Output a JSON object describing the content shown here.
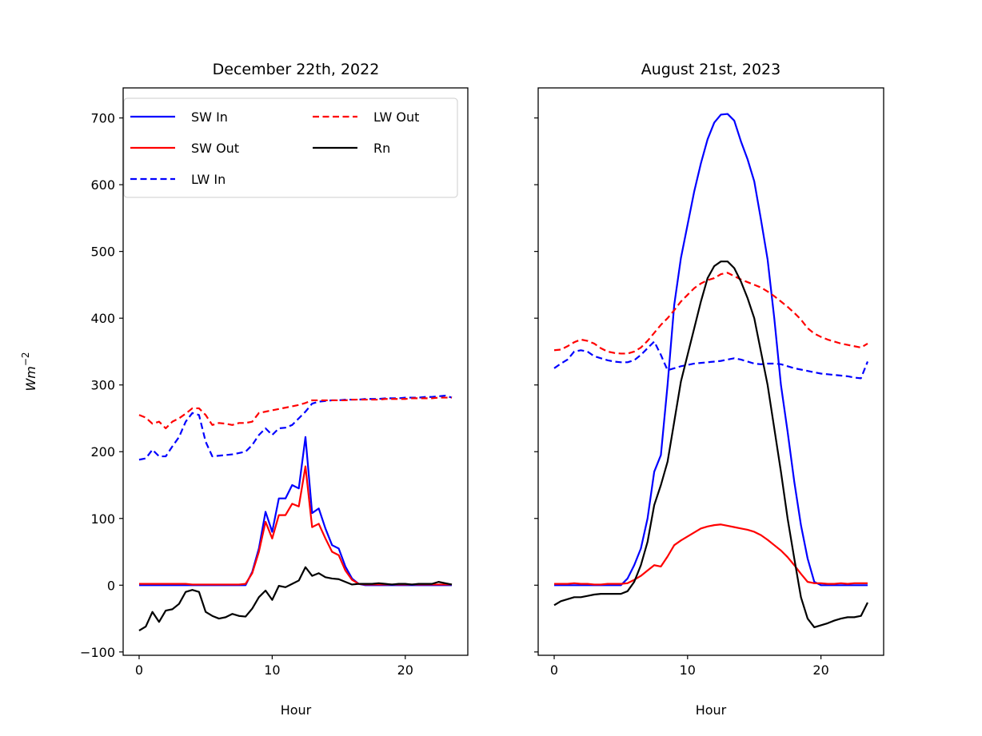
{
  "figure": {
    "ylabel_base": "Wm",
    "ylabel_exp": "−2"
  },
  "chart_data": [
    {
      "type": "line",
      "title": "December 22th, 2022",
      "xlabel": "Hour",
      "ylabel": "Wm^-2",
      "xlim": [
        -1.2,
        24.7
      ],
      "ylim": [
        -105,
        745
      ],
      "xticks": [
        0,
        10,
        20
      ],
      "xtick_labels": [
        "0",
        "10",
        "20"
      ],
      "yticks": [
        -100,
        0,
        100,
        200,
        300,
        400,
        500,
        600,
        700
      ],
      "ytick_labels": [
        "−100",
        "0",
        "100",
        "200",
        "300",
        "400",
        "500",
        "600",
        "700"
      ],
      "grid": false,
      "legend": {
        "placement": "top-left",
        "columns": 2
      },
      "x": [
        0,
        0.5,
        1,
        1.5,
        2,
        2.5,
        3,
        3.5,
        4,
        4.5,
        5,
        5.5,
        6,
        6.5,
        7,
        7.5,
        8,
        8.5,
        9,
        9.5,
        10,
        10.5,
        11,
        11.5,
        12,
        12.5,
        13,
        13.5,
        14,
        14.5,
        15,
        15.5,
        16,
        16.5,
        17,
        17.5,
        18,
        18.5,
        19,
        19.5,
        20,
        20.5,
        21,
        21.5,
        22,
        22.5,
        23,
        23.5
      ],
      "series": [
        {
          "name": "SW In",
          "color": "#0000ff",
          "style": "solid",
          "values": [
            0,
            0,
            0,
            0,
            0,
            0,
            0,
            0,
            0,
            0,
            0,
            0,
            0,
            0,
            0,
            0,
            0,
            20,
            55,
            110,
            80,
            130,
            130,
            150,
            145,
            222,
            108,
            115,
            85,
            60,
            55,
            28,
            10,
            2,
            0,
            0,
            0,
            0,
            0,
            0,
            0,
            0,
            0,
            0,
            0,
            0,
            0,
            0
          ]
        },
        {
          "name": "SW Out",
          "color": "#ff0000",
          "style": "solid",
          "values": [
            2,
            2,
            2,
            2,
            2,
            2,
            2,
            2,
            1,
            1,
            1,
            1,
            1,
            1,
            1,
            1,
            2,
            18,
            50,
            95,
            70,
            105,
            105,
            122,
            118,
            178,
            87,
            92,
            70,
            50,
            45,
            22,
            8,
            2,
            1,
            1,
            1,
            1,
            1,
            1,
            1,
            1,
            1,
            1,
            1,
            1,
            1,
            1
          ]
        },
        {
          "name": "LW In",
          "color": "#0000ff",
          "style": "dashed",
          "values": [
            188,
            190,
            203,
            193,
            193,
            208,
            222,
            245,
            258,
            255,
            215,
            193,
            194,
            195,
            196,
            198,
            200,
            210,
            225,
            235,
            225,
            235,
            236,
            240,
            250,
            260,
            272,
            275,
            276,
            277,
            277,
            278,
            278,
            278,
            279,
            279,
            279,
            280,
            280,
            280,
            281,
            281,
            281,
            282,
            282,
            283,
            284,
            281
          ]
        },
        {
          "name": "LW Out",
          "color": "#ff0000",
          "style": "dashed",
          "values": [
            255,
            251,
            242,
            245,
            235,
            245,
            250,
            257,
            265,
            265,
            255,
            240,
            243,
            242,
            240,
            243,
            243,
            245,
            258,
            260,
            262,
            264,
            266,
            268,
            270,
            273,
            277,
            277,
            277,
            277,
            277,
            277,
            278,
            278,
            278,
            278,
            278,
            279,
            279,
            279,
            279,
            280,
            280,
            280,
            280,
            281,
            281,
            281
          ]
        },
        {
          "name": "Rn",
          "color": "#000000",
          "style": "solid",
          "values": [
            -68,
            -62,
            -40,
            -55,
            -38,
            -36,
            -28,
            -10,
            -7,
            -10,
            -40,
            -46,
            -50,
            -48,
            -43,
            -46,
            -47,
            -35,
            -18,
            -8,
            -22,
            -1,
            -3,
            2,
            7,
            27,
            14,
            18,
            12,
            10,
            9,
            5,
            1,
            2,
            2,
            2,
            3,
            2,
            1,
            2,
            2,
            1,
            2,
            2,
            2,
            5,
            3,
            1
          ]
        }
      ]
    },
    {
      "type": "line",
      "title": "August 21st, 2023",
      "xlabel": "Hour",
      "ylabel": "",
      "xlim": [
        -1.2,
        24.7
      ],
      "ylim": [
        -105,
        745
      ],
      "xticks": [
        0,
        10,
        20
      ],
      "xtick_labels": [
        "0",
        "10",
        "20"
      ],
      "yticks": [
        -100,
        0,
        100,
        200,
        300,
        400,
        500,
        600,
        700
      ],
      "ytick_labels": [],
      "grid": false,
      "x": [
        0,
        0.5,
        1,
        1.5,
        2,
        2.5,
        3,
        3.5,
        4,
        4.5,
        5,
        5.5,
        6,
        6.5,
        7,
        7.5,
        8,
        8.5,
        9,
        9.5,
        10,
        10.5,
        11,
        11.5,
        12,
        12.5,
        13,
        13.5,
        14,
        14.5,
        15,
        15.5,
        16,
        16.5,
        17,
        17.5,
        18,
        18.5,
        19,
        19.5,
        20,
        20.5,
        21,
        21.5,
        22,
        22.5,
        23,
        23.5
      ],
      "series": [
        {
          "name": "SW In",
          "color": "#0000ff",
          "style": "solid",
          "values": [
            0,
            0,
            0,
            0,
            0,
            0,
            0,
            0,
            0,
            0,
            0,
            10,
            30,
            55,
            100,
            170,
            195,
            300,
            420,
            490,
            540,
            590,
            632,
            668,
            693,
            705,
            706,
            696,
            665,
            638,
            605,
            548,
            488,
            400,
            300,
            230,
            155,
            90,
            40,
            5,
            0,
            0,
            0,
            0,
            0,
            0,
            0,
            0
          ]
        },
        {
          "name": "SW Out",
          "color": "#ff0000",
          "style": "solid",
          "values": [
            2,
            2,
            2,
            3,
            2,
            2,
            1,
            1,
            2,
            2,
            2,
            3,
            8,
            14,
            22,
            30,
            28,
            43,
            60,
            67,
            73,
            79,
            85,
            88,
            90,
            91,
            89,
            87,
            85,
            83,
            80,
            75,
            68,
            60,
            52,
            42,
            30,
            17,
            5,
            3,
            3,
            2,
            2,
            3,
            2,
            3,
            3,
            3
          ]
        },
        {
          "name": "LW In",
          "color": "#0000ff",
          "style": "dashed",
          "values": [
            325,
            332,
            338,
            350,
            352,
            350,
            343,
            340,
            337,
            335,
            334,
            334,
            337,
            345,
            355,
            365,
            345,
            322,
            325,
            328,
            330,
            332,
            333,
            334,
            335,
            336,
            338,
            340,
            338,
            335,
            332,
            331,
            332,
            332,
            331,
            328,
            325,
            323,
            321,
            319,
            317,
            316,
            315,
            314,
            313,
            311,
            310,
            335
          ]
        },
        {
          "name": "LW Out",
          "color": "#ff0000",
          "style": "dashed",
          "values": [
            352,
            353,
            358,
            364,
            368,
            366,
            362,
            355,
            350,
            348,
            347,
            347,
            350,
            356,
            366,
            378,
            390,
            400,
            412,
            425,
            435,
            445,
            452,
            457,
            460,
            466,
            468,
            463,
            458,
            454,
            450,
            446,
            440,
            433,
            425,
            417,
            408,
            398,
            385,
            377,
            372,
            368,
            365,
            362,
            360,
            358,
            356,
            362
          ]
        },
        {
          "name": "Rn",
          "color": "#000000",
          "style": "solid",
          "values": [
            -30,
            -24,
            -21,
            -18,
            -18,
            -16,
            -14,
            -13,
            -13,
            -13,
            -13,
            -9,
            5,
            30,
            65,
            120,
            150,
            185,
            245,
            305,
            345,
            385,
            425,
            460,
            478,
            485,
            485,
            475,
            455,
            430,
            400,
            350,
            300,
            235,
            170,
            100,
            40,
            -18,
            -50,
            -63,
            -60,
            -57,
            -53,
            -50,
            -48,
            -48,
            -46,
            -26
          ]
        }
      ]
    }
  ]
}
